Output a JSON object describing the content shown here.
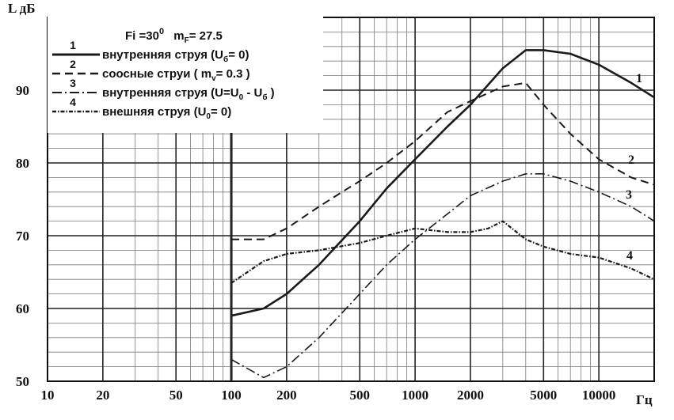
{
  "chart_data": {
    "type": "line",
    "ylabel": "L дБ",
    "xlabel": "Гц",
    "x_scale": "log",
    "xlim": [
      10,
      20000
    ],
    "ylim": [
      50,
      100
    ],
    "grid": true,
    "x_ticks": [
      10,
      20,
      50,
      100,
      200,
      500,
      1000,
      2000,
      5000,
      10000
    ],
    "x_tick_labels": [
      "10",
      "20",
      "50",
      "100",
      "200",
      "500",
      "1000",
      "2000",
      "5000",
      "10000"
    ],
    "y_ticks": [
      50,
      60,
      70,
      80,
      90
    ],
    "y_tick_labels": [
      "50",
      "60",
      "70",
      "80",
      "90"
    ],
    "legend": {
      "position": "top-left",
      "header": {
        "fi_text": "Fi =30",
        "fi_sup": "0",
        "mf_text": "m",
        "mf_sub": "F",
        "mf_value": "= 27.5"
      },
      "entries": [
        {
          "number": "1",
          "text": "внутренняя струя (U",
          "sub": "б",
          "tail": "= 0)"
        },
        {
          "number": "2",
          "text": "соосные струи     ( m",
          "sub": "v",
          "tail": "= 0.3 )"
        },
        {
          "number": "3",
          "text": "внутренняя струя (U=U",
          "sub": "0",
          "tail": " - U",
          "sub2": "б",
          "tail2": " )"
        },
        {
          "number": "4",
          "text": "внешняя струя       (U",
          "sub": "0",
          "tail": "= 0)"
        }
      ]
    },
    "series": [
      {
        "name": "1",
        "style": "solid",
        "x": [
          100,
          150,
          200,
          300,
          500,
          700,
          1000,
          1500,
          2000,
          3000,
          4000,
          5000,
          7000,
          10000,
          15000,
          20000
        ],
        "y": [
          59,
          60,
          62,
          66,
          72,
          76.5,
          80.5,
          85,
          88,
          93,
          95.5,
          95.5,
          95,
          93.5,
          91,
          89
        ]
      },
      {
        "name": "2",
        "style": "dashed",
        "x": [
          100,
          150,
          200,
          300,
          400,
          500,
          700,
          1000,
          1500,
          2000,
          3000,
          4000,
          5000,
          7000,
          10000,
          15000,
          20000
        ],
        "y": [
          69.5,
          69.5,
          71,
          74,
          76,
          77.5,
          80,
          83,
          87,
          88.5,
          90.5,
          91,
          88,
          84,
          80.5,
          78,
          77
        ]
      },
      {
        "name": "3",
        "style": "dash-dot",
        "x": [
          100,
          150,
          200,
          300,
          500,
          700,
          1000,
          1500,
          2000,
          3000,
          4000,
          5000,
          7000,
          10000,
          15000,
          20000
        ],
        "y": [
          53,
          50.5,
          52,
          56,
          62,
          66,
          69.5,
          73,
          75.5,
          77.5,
          78.5,
          78.5,
          77.5,
          76,
          74,
          72
        ]
      },
      {
        "name": "4",
        "style": "dotted",
        "x": [
          100,
          150,
          200,
          300,
          500,
          700,
          1000,
          1500,
          2000,
          2500,
          3000,
          4000,
          5000,
          7000,
          10000,
          15000,
          20000
        ],
        "y": [
          63.5,
          66.5,
          67.5,
          68,
          69,
          70,
          71,
          70.5,
          70.5,
          71,
          72,
          69.5,
          68.5,
          67.5,
          67,
          65.5,
          64
        ]
      }
    ],
    "curve_labels": [
      "1",
      "2",
      "3",
      "4"
    ]
  }
}
